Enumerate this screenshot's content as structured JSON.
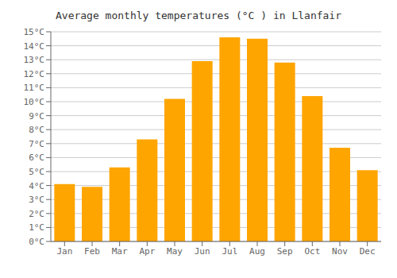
{
  "chart_data": {
    "type": "bar",
    "title": "Average monthly temperatures (°C ) in Llanfair",
    "categories": [
      "Jan",
      "Feb",
      "Mar",
      "Apr",
      "May",
      "Jun",
      "Jul",
      "Aug",
      "Sep",
      "Oct",
      "Nov",
      "Dec"
    ],
    "values": [
      4.1,
      3.9,
      5.3,
      7.3,
      10.2,
      12.9,
      14.6,
      14.5,
      12.8,
      10.4,
      6.7,
      5.1
    ],
    "color": "#FFA500",
    "ylim": [
      0,
      15
    ],
    "yticks": [
      {
        "value": 0,
        "label": "0°C"
      },
      {
        "value": 1,
        "label": "1°C"
      },
      {
        "value": 2,
        "label": "2°C"
      },
      {
        "value": 3,
        "label": "3°C"
      },
      {
        "value": 4,
        "label": "4°C"
      },
      {
        "value": 5,
        "label": "5°C"
      },
      {
        "value": 6,
        "label": "6°C"
      },
      {
        "value": 7,
        "label": "7°C"
      },
      {
        "value": 8,
        "label": "8°C"
      },
      {
        "value": 9,
        "label": "9°C"
      },
      {
        "value": 10,
        "label": "10°C"
      },
      {
        "value": 11,
        "label": "11°C"
      },
      {
        "value": 12,
        "label": "12°C"
      },
      {
        "value": 13,
        "label": "13°C"
      },
      {
        "value": 14,
        "label": "14°C"
      },
      {
        "value": 15,
        "label": "15°C"
      }
    ],
    "grid": true
  }
}
